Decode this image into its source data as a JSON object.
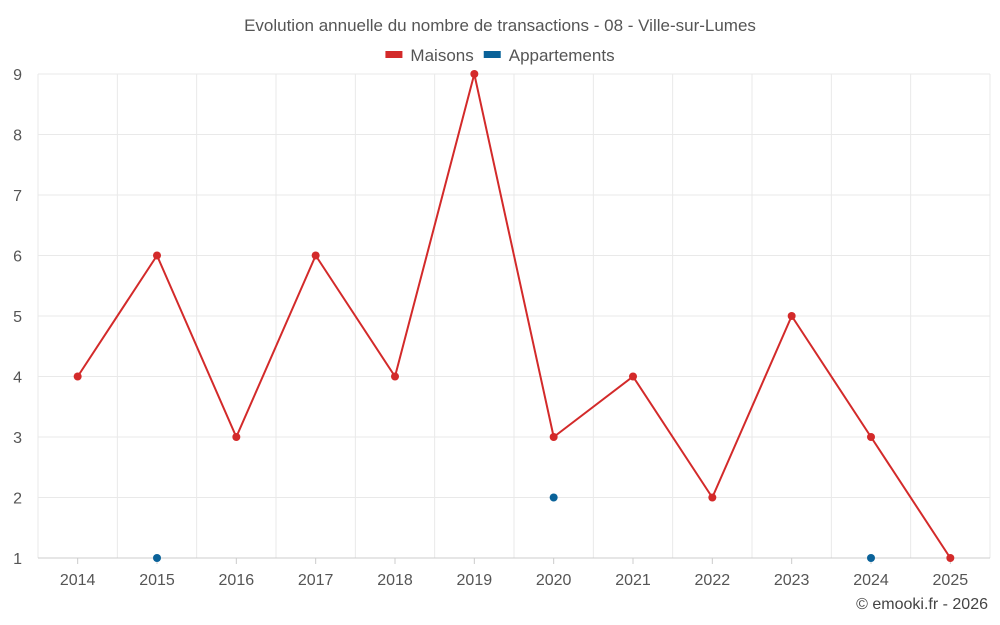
{
  "chart_data": {
    "type": "line",
    "title": "Evolution annuelle du nombre de transactions - 08 - Ville-sur-Lumes",
    "categories": [
      "2014",
      "2015",
      "2016",
      "2017",
      "2018",
      "2019",
      "2020",
      "2021",
      "2022",
      "2023",
      "2024",
      "2025"
    ],
    "series": [
      {
        "name": "Maisons",
        "color": "#d32a2a",
        "values": [
          4,
          6,
          3,
          6,
          4,
          9,
          3,
          4,
          2,
          5,
          3,
          1
        ]
      },
      {
        "name": "Appartements",
        "color": "#0a6299",
        "values": [
          null,
          1,
          null,
          null,
          null,
          null,
          2,
          null,
          null,
          null,
          1,
          null
        ]
      }
    ],
    "ylim": [
      1,
      9
    ],
    "yticks": [
      1,
      2,
      3,
      4,
      5,
      6,
      7,
      8,
      9
    ],
    "xlabel": "",
    "ylabel": "",
    "grid": true,
    "legend": "top-center"
  },
  "credit": "© emooki.fr - 2026"
}
